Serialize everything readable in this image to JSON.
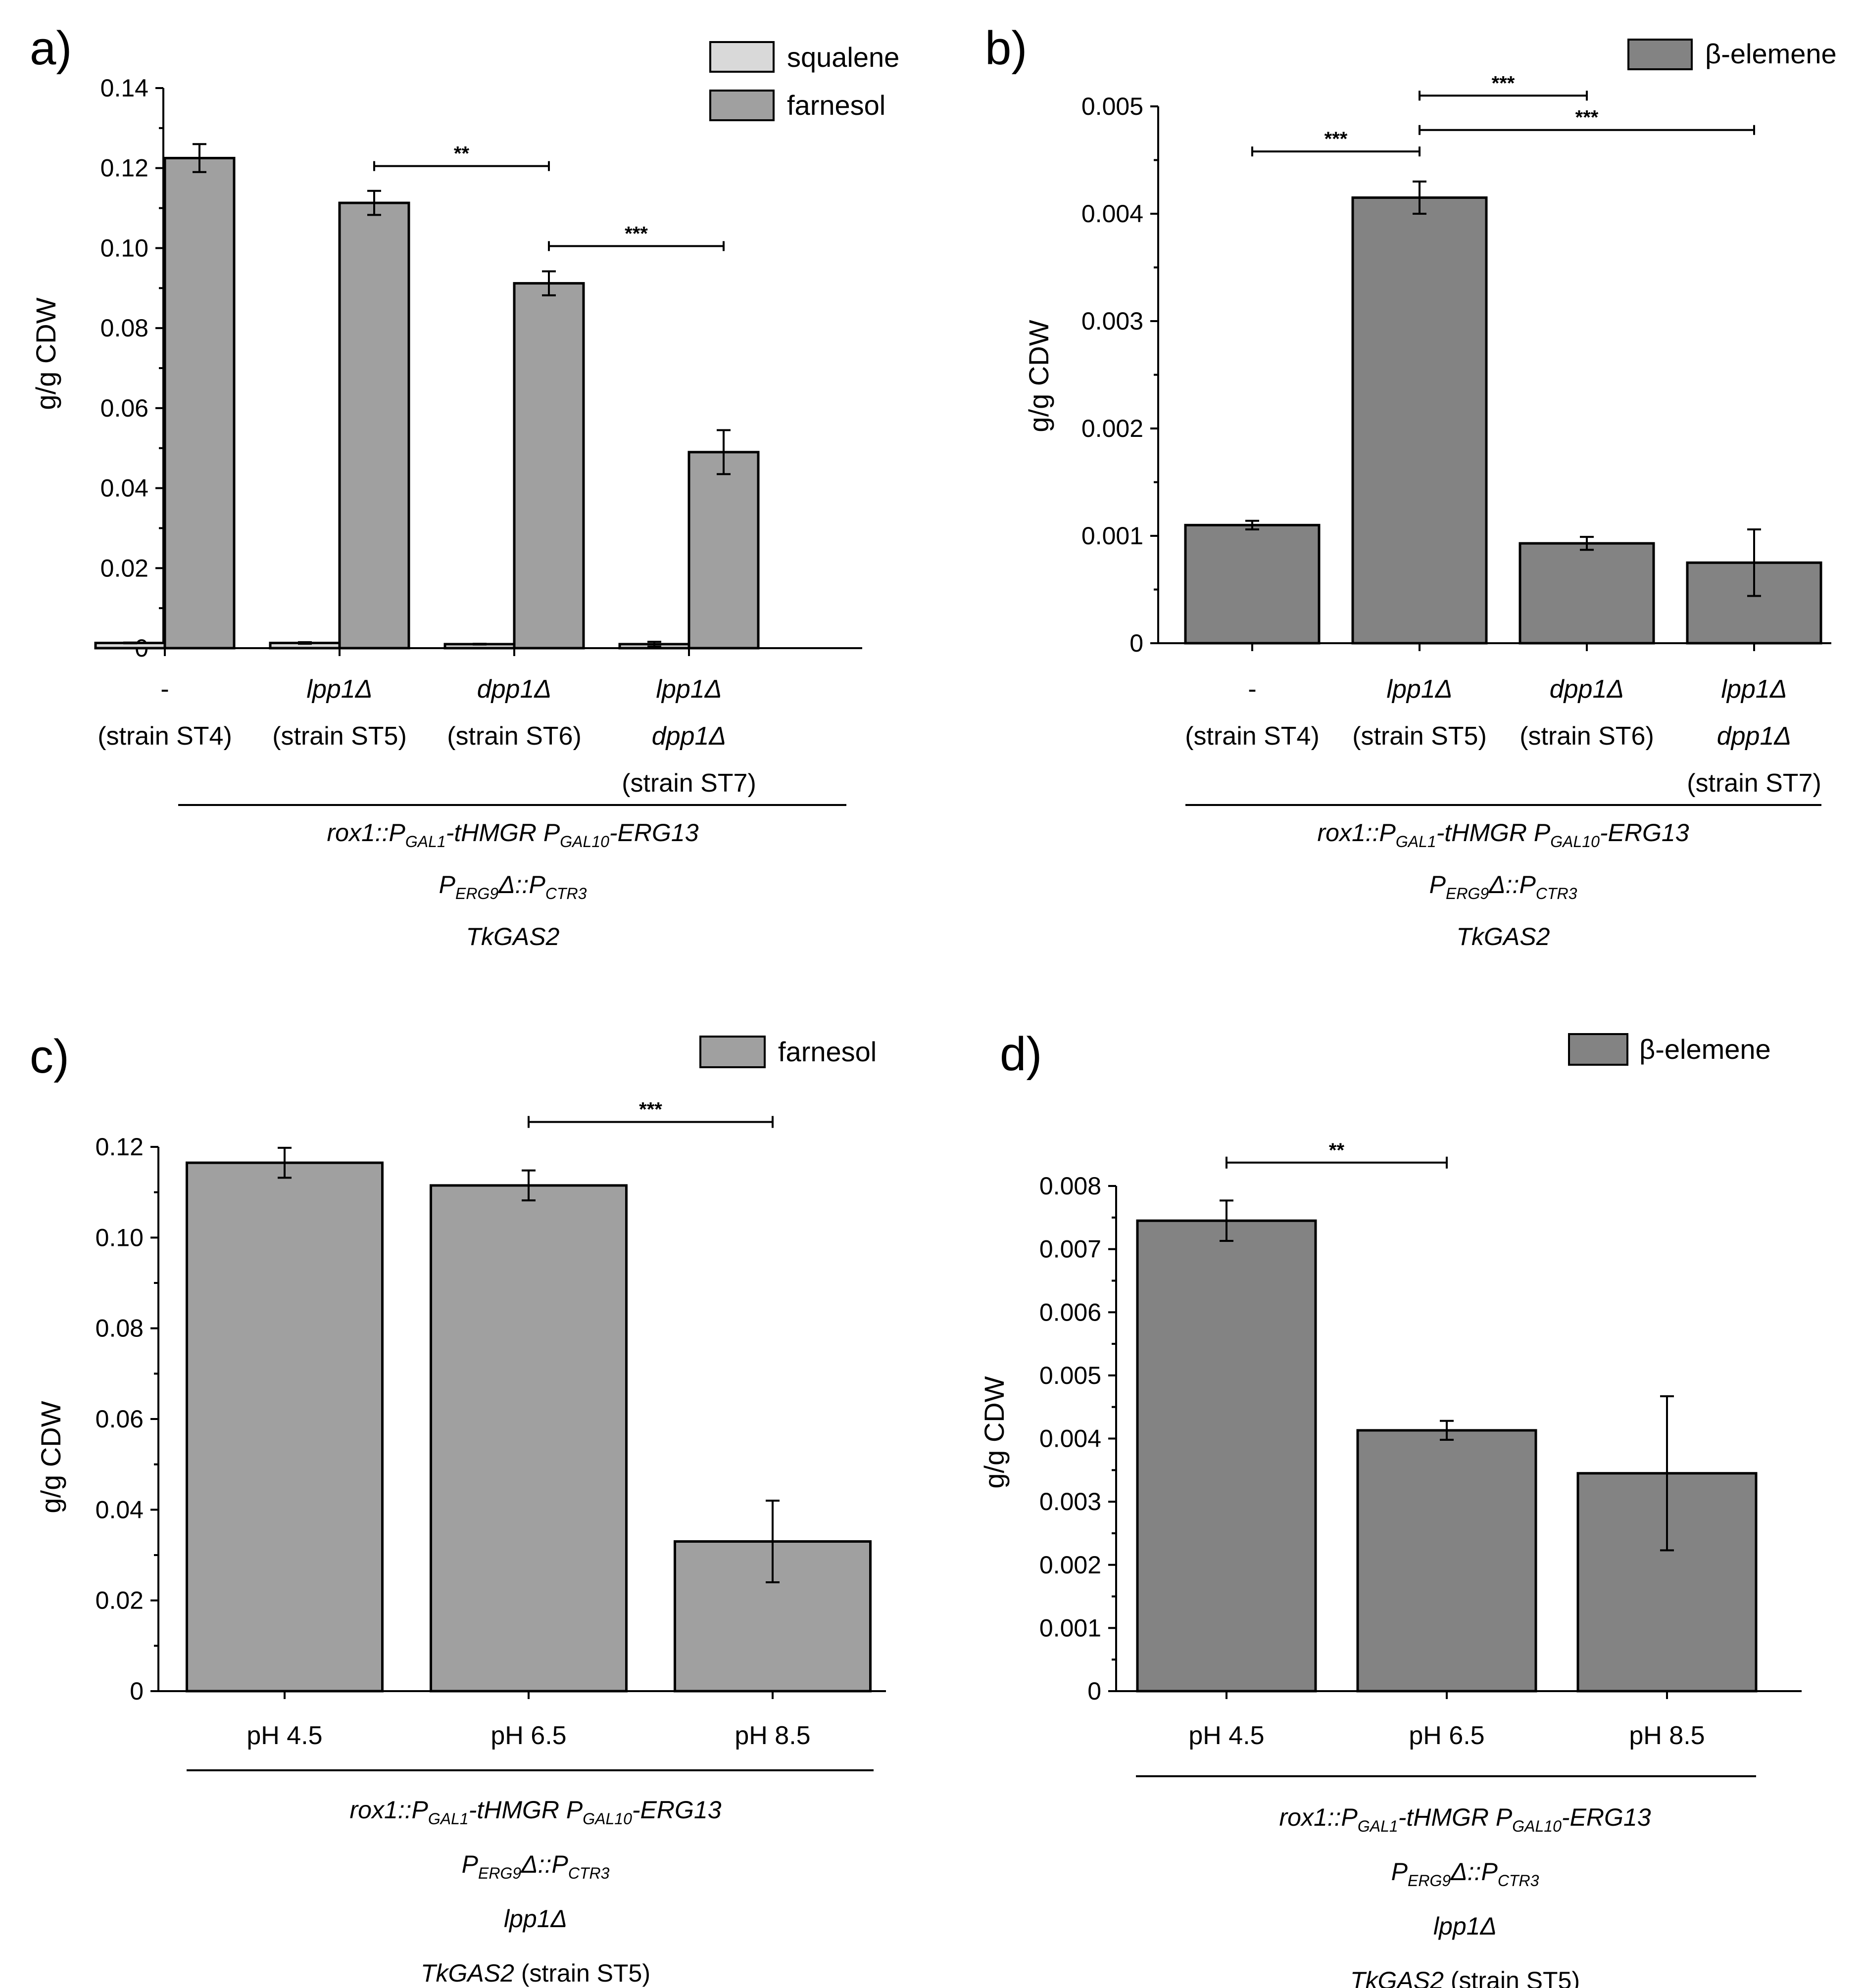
{
  "colors": {
    "squalene": "#d9d9d9",
    "farnesol": "#a0a0a0",
    "beta_elemene": "#838383"
  },
  "chart_data": [
    {
      "panel": "a)",
      "type": "bar",
      "ylabel": "g/g CDW",
      "ylim": [
        0,
        0.14
      ],
      "yticks": [
        0,
        0.02,
        0.04,
        0.06,
        0.08,
        0.1,
        0.12,
        0.14
      ],
      "ytick_labels": [
        "0",
        "0.02",
        "0.04",
        "0.06",
        "0.08",
        "0.10",
        "0.12",
        "0.14"
      ],
      "categories": [
        [
          "-",
          "(strain ST4)"
        ],
        [
          "lpp1Δ",
          "(strain ST5)"
        ],
        [
          "dpp1Δ",
          "(strain ST6)"
        ],
        [
          "lpp1Δ",
          "dpp1Δ",
          "(strain ST7)"
        ]
      ],
      "series": [
        {
          "name": "squalene",
          "values": [
            0.0013,
            0.0013,
            0.001,
            0.001
          ],
          "errors": [
            0.0001,
            0.0002,
            0.0001,
            0.0006
          ]
        },
        {
          "name": "farnesol",
          "values": [
            0.1225,
            0.1113,
            0.0912,
            0.049
          ],
          "errors": [
            0.0035,
            0.003,
            0.003,
            0.0055
          ]
        }
      ],
      "significance": [
        {
          "from": 1,
          "to": 2,
          "label": "**",
          "y": 0.1205
        },
        {
          "from": 2,
          "to": 3,
          "label": "***",
          "y": 0.1005
        }
      ],
      "genotype": [
        [
          "rox1::P",
          "GAL1",
          "-tHMGR P",
          "GAL10",
          "-ERG13"
        ],
        [
          "P",
          "ERG9",
          "Δ::P",
          "CTR3"
        ],
        [
          "TkGAS2"
        ]
      ]
    },
    {
      "panel": "b)",
      "type": "bar",
      "ylabel": "g/g CDW",
      "ylim": [
        0,
        0.005
      ],
      "yticks": [
        0,
        0.001,
        0.002,
        0.003,
        0.004,
        0.005
      ],
      "ytick_labels": [
        "0",
        "0.001",
        "0.002",
        "0.003",
        "0.004",
        "0.005"
      ],
      "categories": [
        [
          "-",
          "(strain ST4)"
        ],
        [
          "lpp1Δ",
          "(strain ST5)"
        ],
        [
          "dpp1Δ",
          "(strain ST6)"
        ],
        [
          "lpp1Δ",
          "dpp1Δ",
          "(strain ST7)"
        ]
      ],
      "series": [
        {
          "name": "β-elemene",
          "values": [
            0.0011,
            0.00415,
            0.00093,
            0.00075
          ],
          "errors": [
            4e-05,
            0.00015,
            6e-05,
            0.00031
          ]
        }
      ],
      "significance": [
        {
          "from": 0,
          "to": 1,
          "label": "***",
          "y": 0.00458
        },
        {
          "from": 1,
          "to": 2,
          "label": "***",
          "y": 0.0051
        },
        {
          "from": 1,
          "to": 3,
          "label": "***",
          "y": 0.00478
        }
      ],
      "genotype": [
        [
          "rox1::P",
          "GAL1",
          "-tHMGR P",
          "GAL10",
          "-ERG13"
        ],
        [
          "P",
          "ERG9",
          "Δ::P",
          "CTR3"
        ],
        [
          "TkGAS2"
        ]
      ]
    },
    {
      "panel": "c)",
      "type": "bar",
      "ylabel": "g/g CDW",
      "ylim": [
        0,
        0.12
      ],
      "yticks": [
        0,
        0.02,
        0.04,
        0.06,
        0.08,
        0.1,
        0.12
      ],
      "ytick_labels": [
        "0",
        "0.02",
        "0.04",
        "0.06",
        "0.08",
        "0.10",
        "0.12"
      ],
      "categories": [
        [
          "pH 4.5"
        ],
        [
          "pH 6.5"
        ],
        [
          "pH 8.5"
        ]
      ],
      "series": [
        {
          "name": "farnesol",
          "values": [
            0.1165,
            0.1115,
            0.033
          ],
          "errors": [
            0.0033,
            0.0033,
            0.009
          ]
        }
      ],
      "significance": [
        {
          "from": 1,
          "to": 2,
          "label": "***",
          "y": 0.1255
        }
      ],
      "genotype": [
        [
          "rox1::P",
          "GAL1",
          "-tHMGR P",
          "GAL10",
          "-ERG13"
        ],
        [
          "P",
          "ERG9",
          "Δ::P",
          "CTR3"
        ],
        [
          "lpp1Δ"
        ],
        [
          "TkGAS2",
          " (strain ST5)"
        ]
      ]
    },
    {
      "panel": "d)",
      "type": "bar",
      "ylabel": "g/g CDW",
      "ylim": [
        0,
        0.008
      ],
      "yticks": [
        0,
        0.001,
        0.002,
        0.003,
        0.004,
        0.005,
        0.006,
        0.007,
        0.008
      ],
      "ytick_labels": [
        "0",
        "0.001",
        "0.002",
        "0.003",
        "0.004",
        "0.005",
        "0.006",
        "0.007",
        "0.008"
      ],
      "categories": [
        [
          "pH 4.5"
        ],
        [
          "pH 6.5"
        ],
        [
          "pH 8.5"
        ]
      ],
      "series": [
        {
          "name": "β-elemene",
          "values": [
            0.00745,
            0.00413,
            0.00345
          ],
          "errors": [
            0.00032,
            0.00015,
            0.00122
          ]
        }
      ],
      "significance": [
        {
          "from": 0,
          "to": 1,
          "label": "**",
          "y": 0.00837
        }
      ],
      "genotype": [
        [
          "rox1::P",
          "GAL1",
          "-tHMGR P",
          "GAL10",
          "-ERG13"
        ],
        [
          "P",
          "ERG9",
          "Δ::P",
          "CTR3"
        ],
        [
          "lpp1Δ"
        ],
        [
          "TkGAS2",
          " (strain ST5)"
        ]
      ]
    }
  ]
}
